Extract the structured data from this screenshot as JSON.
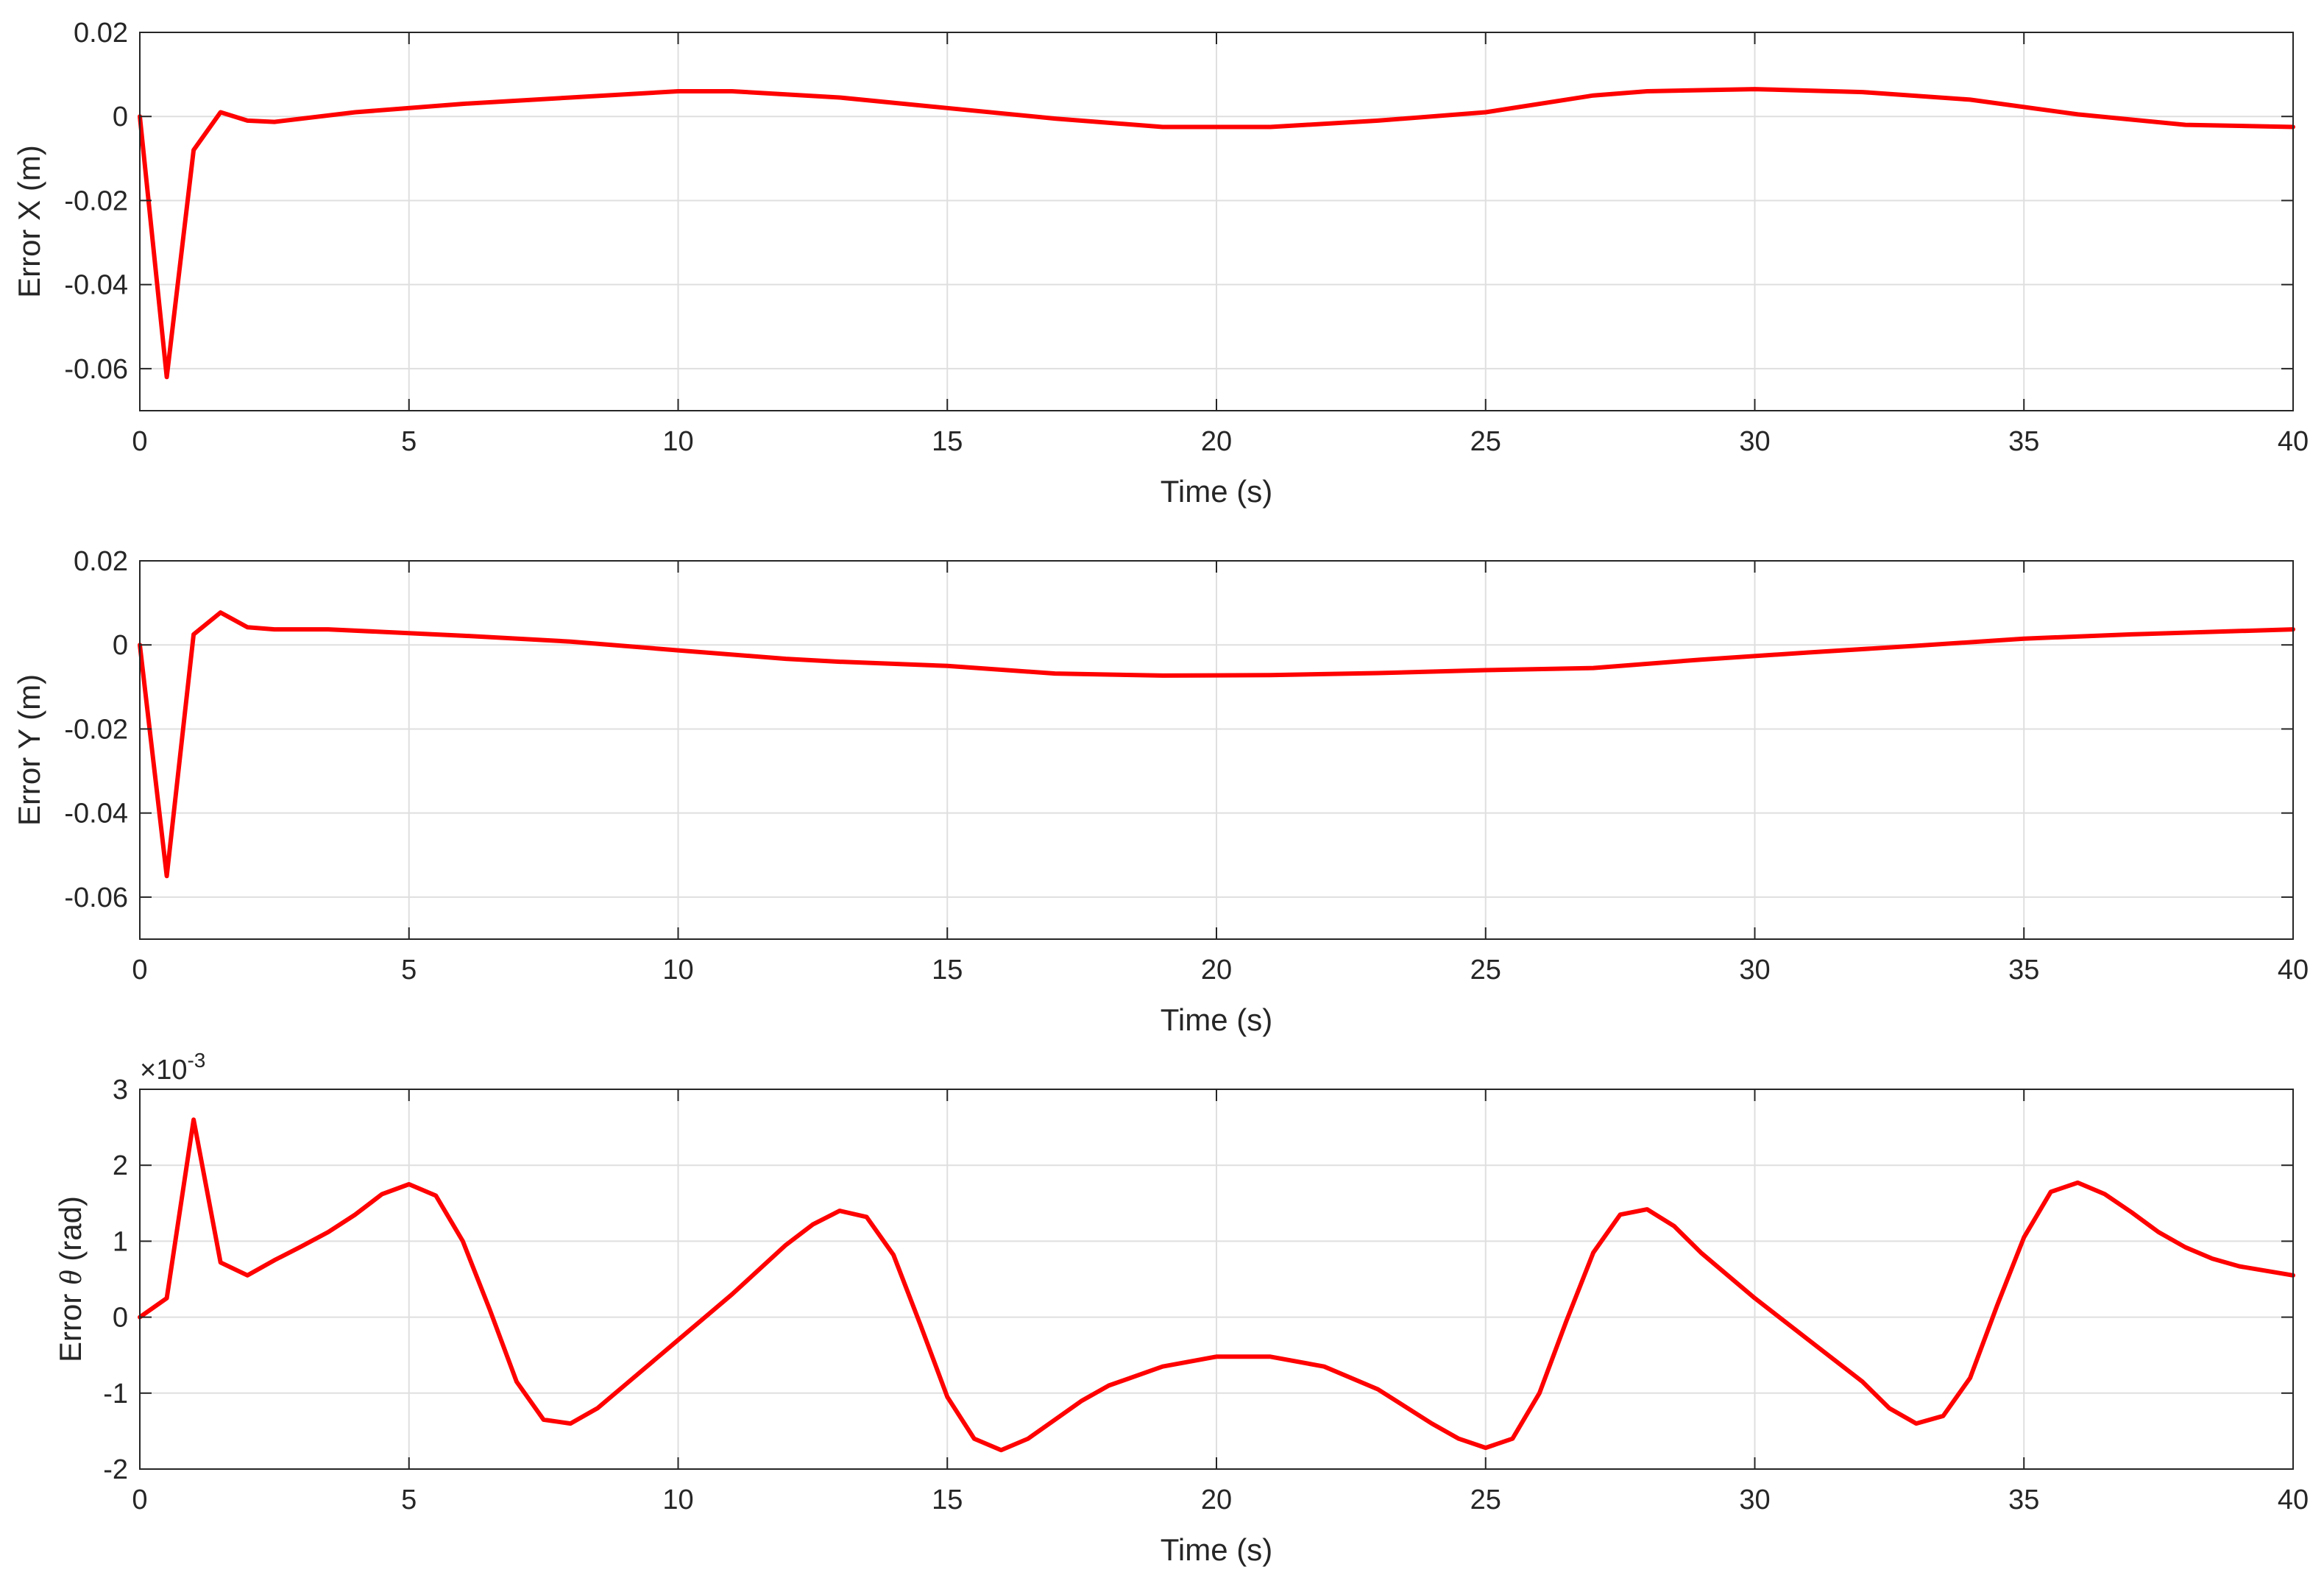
{
  "colors": {
    "line": "#ff0000",
    "axes": "#262626",
    "grid": "#dfdfdf",
    "background": "#ffffff"
  },
  "chart_data": [
    {
      "type": "line",
      "xlabel": "Time (s)",
      "ylabel": "Error X (m)",
      "xlim": [
        0,
        40
      ],
      "ylim": [
        -0.07,
        0.02
      ],
      "xticks": [
        0,
        5,
        10,
        15,
        20,
        25,
        30,
        35,
        40
      ],
      "xtick_labels": [
        "0",
        "5",
        "10",
        "15",
        "20",
        "25",
        "30",
        "35",
        "40"
      ],
      "yticks": [
        -0.06,
        -0.04,
        -0.02,
        0,
        0.02
      ],
      "ytick_labels": [
        "-0.06",
        "-0.04",
        "-0.02",
        "0",
        "0.02"
      ],
      "grid": true,
      "series": [
        {
          "x": [
            0,
            0.5,
            1,
            1.5,
            2,
            2.5,
            4,
            6,
            8,
            10,
            11,
            13,
            15,
            17,
            19,
            21,
            23,
            25,
            27,
            28,
            30,
            32,
            34,
            36,
            38,
            40
          ],
          "y": [
            0,
            -0.062,
            -0.008,
            0.001,
            -0.001,
            -0.0013,
            0.001,
            0.003,
            0.0045,
            0.006,
            0.006,
            0.0045,
            0.002,
            -0.0005,
            -0.0025,
            -0.0025,
            -0.001,
            0.001,
            0.005,
            0.006,
            0.0065,
            0.0058,
            0.004,
            0.0005,
            -0.002,
            -0.0025
          ]
        }
      ]
    },
    {
      "type": "line",
      "xlabel": "Time (s)",
      "ylabel": "Error Y (m)",
      "xlim": [
        0,
        40
      ],
      "ylim": [
        -0.07,
        0.02
      ],
      "xticks": [
        0,
        5,
        10,
        15,
        20,
        25,
        30,
        35,
        40
      ],
      "xtick_labels": [
        "0",
        "5",
        "10",
        "15",
        "20",
        "25",
        "30",
        "35",
        "40"
      ],
      "yticks": [
        -0.06,
        -0.04,
        -0.02,
        0,
        0.02
      ],
      "ytick_labels": [
        "-0.06",
        "-0.04",
        "-0.02",
        "0",
        "0.02"
      ],
      "grid": true,
      "series": [
        {
          "x": [
            0,
            0.5,
            1,
            1.5,
            2,
            2.5,
            3.5,
            6,
            8,
            10,
            12,
            13,
            15,
            17,
            19,
            21,
            23,
            25,
            27,
            29,
            31,
            33,
            35,
            37,
            40
          ],
          "y": [
            0,
            -0.055,
            0.0025,
            0.0077,
            0.0042,
            0.0037,
            0.0037,
            0.0022,
            0.0008,
            -0.0013,
            -0.0033,
            -0.004,
            -0.005,
            -0.0068,
            -0.0073,
            -0.0072,
            -0.0067,
            -0.006,
            -0.0055,
            -0.0035,
            -0.0018,
            -0.0002,
            0.0015,
            0.0025,
            0.0037
          ]
        }
      ]
    },
    {
      "type": "line",
      "xlabel": "Time (s)",
      "ylabel": "Error θ (rad)",
      "ylabel_text": "Error ",
      "ylabel_symbol": "θ",
      "ylabel_unit": " (rad)",
      "y_exponent": "×10",
      "y_exponent_power": "-3",
      "xlim": [
        0,
        40
      ],
      "ylim": [
        -2,
        3
      ],
      "xticks": [
        0,
        5,
        10,
        15,
        20,
        25,
        30,
        35,
        40
      ],
      "xtick_labels": [
        "0",
        "5",
        "10",
        "15",
        "20",
        "25",
        "30",
        "35",
        "40"
      ],
      "yticks": [
        -2,
        -1,
        0,
        1,
        2,
        3
      ],
      "ytick_labels": [
        "-2",
        "-1",
        "0",
        "1",
        "2",
        "3"
      ],
      "grid": true,
      "series": [
        {
          "x": [
            0,
            0.5,
            1,
            1.5,
            2,
            2.5,
            3,
            3.5,
            4,
            4.5,
            5,
            5.5,
            6,
            6.5,
            7,
            7.5,
            8,
            8.5,
            9,
            10,
            11,
            12,
            12.5,
            13,
            13.5,
            14,
            14.5,
            15,
            15.5,
            16,
            16.5,
            17,
            17.5,
            18,
            19,
            20,
            21,
            22,
            23,
            24,
            24.5,
            25,
            25.5,
            26,
            26.5,
            27,
            27.5,
            28,
            28.5,
            29,
            30,
            31,
            32,
            32.5,
            33,
            33.5,
            34,
            34.5,
            35,
            35.5,
            36,
            36.5,
            37,
            37.5,
            38,
            38.5,
            39,
            40
          ],
          "y": [
            0,
            0.25,
            2.6,
            0.72,
            0.55,
            0.75,
            0.93,
            1.12,
            1.35,
            1.62,
            1.75,
            1.6,
            1.0,
            0.1,
            -0.85,
            -1.35,
            -1.4,
            -1.2,
            -0.9,
            -0.3,
            0.3,
            0.95,
            1.22,
            1.4,
            1.32,
            0.82,
            -0.1,
            -1.05,
            -1.6,
            -1.75,
            -1.6,
            -1.35,
            -1.1,
            -0.9,
            -0.65,
            -0.52,
            -0.52,
            -0.65,
            -0.95,
            -1.4,
            -1.6,
            -1.72,
            -1.6,
            -1.0,
            -0.05,
            0.85,
            1.35,
            1.42,
            1.2,
            0.85,
            0.25,
            -0.3,
            -0.85,
            -1.2,
            -1.4,
            -1.3,
            -0.8,
            0.15,
            1.05,
            1.65,
            1.77,
            1.62,
            1.38,
            1.12,
            0.92,
            0.77,
            0.67,
            0.55
          ]
        }
      ]
    }
  ]
}
